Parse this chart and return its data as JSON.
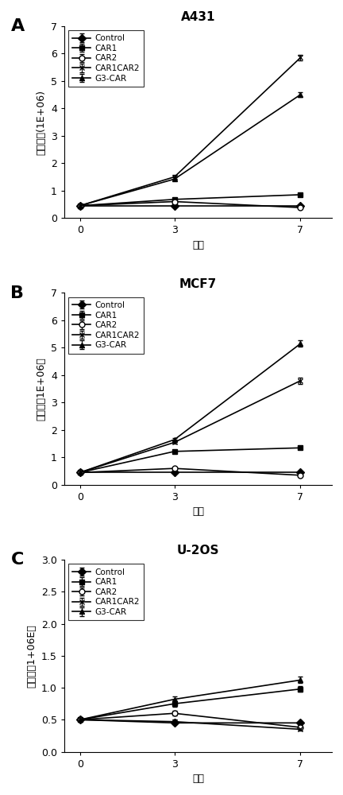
{
  "panels": [
    {
      "label": "A",
      "title": "A431",
      "ylabel_cn": "细胞数目",
      "ylabel_en": "(1E+06)",
      "xlabel": "天数",
      "ylim": [
        0,
        7
      ],
      "yticks": [
        0,
        1,
        2,
        3,
        4,
        5,
        6,
        7
      ],
      "series": [
        {
          "name": "Control",
          "marker": "D",
          "filled": true,
          "x": [
            0,
            3,
            7
          ],
          "y": [
            0.45,
            0.45,
            0.45
          ],
          "yerr": [
            0.02,
            0.02,
            0.02
          ]
        },
        {
          "name": "CAR1",
          "marker": "s",
          "filled": true,
          "x": [
            0,
            3,
            7
          ],
          "y": [
            0.45,
            0.68,
            0.85
          ],
          "yerr": [
            0.02,
            0.04,
            0.04
          ]
        },
        {
          "name": "CAR2",
          "marker": "o",
          "filled": false,
          "x": [
            0,
            3,
            7
          ],
          "y": [
            0.45,
            0.6,
            0.38
          ],
          "yerr": [
            0.02,
            0.03,
            0.02
          ]
        },
        {
          "name": "CAR1CAR2",
          "marker": "x",
          "filled": true,
          "x": [
            0,
            3,
            7
          ],
          "y": [
            0.45,
            1.5,
            5.85
          ],
          "yerr": [
            0.02,
            0.06,
            0.1
          ]
        },
        {
          "name": "G3-CAR",
          "marker": "^",
          "filled": true,
          "x": [
            0,
            3,
            7
          ],
          "y": [
            0.45,
            1.42,
            4.5
          ],
          "yerr": [
            0.02,
            0.06,
            0.1
          ]
        }
      ]
    },
    {
      "label": "B",
      "title": "MCF7",
      "ylabel_cn": "细胞数",
      "ylabel_en": "（1E+06）",
      "xlabel": "天数",
      "ylim": [
        0,
        7
      ],
      "yticks": [
        0,
        1,
        2,
        3,
        4,
        5,
        6,
        7
      ],
      "series": [
        {
          "name": "Control",
          "marker": "D",
          "filled": true,
          "x": [
            0,
            3,
            7
          ],
          "y": [
            0.45,
            0.45,
            0.45
          ],
          "yerr": [
            0.02,
            0.02,
            0.02
          ]
        },
        {
          "name": "CAR1",
          "marker": "s",
          "filled": true,
          "x": [
            0,
            3,
            7
          ],
          "y": [
            0.45,
            1.22,
            1.35
          ],
          "yerr": [
            0.02,
            0.05,
            0.05
          ]
        },
        {
          "name": "CAR2",
          "marker": "o",
          "filled": false,
          "x": [
            0,
            3,
            7
          ],
          "y": [
            0.45,
            0.6,
            0.35
          ],
          "yerr": [
            0.02,
            0.03,
            0.02
          ]
        },
        {
          "name": "CAR1CAR2",
          "marker": "x",
          "filled": false,
          "x": [
            0,
            3,
            7
          ],
          "y": [
            0.45,
            1.55,
            3.8
          ],
          "yerr": [
            0.02,
            0.06,
            0.12
          ]
        },
        {
          "name": "G3-CAR",
          "marker": "^",
          "filled": true,
          "x": [
            0,
            3,
            7
          ],
          "y": [
            0.45,
            1.65,
            5.15
          ],
          "yerr": [
            0.02,
            0.06,
            0.12
          ]
        }
      ]
    },
    {
      "label": "C",
      "title": "U-2OS",
      "ylabel_cn": "细胞数",
      "ylabel_en": "（1+06E）",
      "xlabel": "天数",
      "ylim": [
        0,
        3
      ],
      "yticks": [
        0,
        0.5,
        1.0,
        1.5,
        2.0,
        2.5,
        3.0
      ],
      "series": [
        {
          "name": "Control",
          "marker": "D",
          "filled": true,
          "x": [
            0,
            3,
            7
          ],
          "y": [
            0.5,
            0.45,
            0.45
          ],
          "yerr": [
            0.02,
            0.02,
            0.03
          ]
        },
        {
          "name": "CAR1",
          "marker": "s",
          "filled": true,
          "x": [
            0,
            3,
            7
          ],
          "y": [
            0.5,
            0.75,
            0.98
          ],
          "yerr": [
            0.02,
            0.05,
            0.04
          ]
        },
        {
          "name": "CAR2",
          "marker": "o",
          "filled": false,
          "x": [
            0,
            3,
            7
          ],
          "y": [
            0.5,
            0.6,
            0.38
          ],
          "yerr": [
            0.02,
            0.04,
            0.03
          ]
        },
        {
          "name": "CAR1CAR2",
          "marker": "x",
          "filled": true,
          "x": [
            0,
            3,
            7
          ],
          "y": [
            0.5,
            0.47,
            0.35
          ],
          "yerr": [
            0.02,
            0.03,
            0.02
          ]
        },
        {
          "name": "G3-CAR",
          "marker": "^",
          "filled": true,
          "x": [
            0,
            3,
            7
          ],
          "y": [
            0.5,
            0.82,
            1.12
          ],
          "yerr": [
            0.02,
            0.05,
            0.05
          ]
        }
      ]
    }
  ],
  "line_color": "#000000",
  "marker_size": 5,
  "linewidth": 1.2,
  "legend_fontsize": 7.5,
  "tick_fontsize": 9,
  "label_fontsize": 9,
  "title_fontsize": 11,
  "panel_label_fontsize": 16
}
